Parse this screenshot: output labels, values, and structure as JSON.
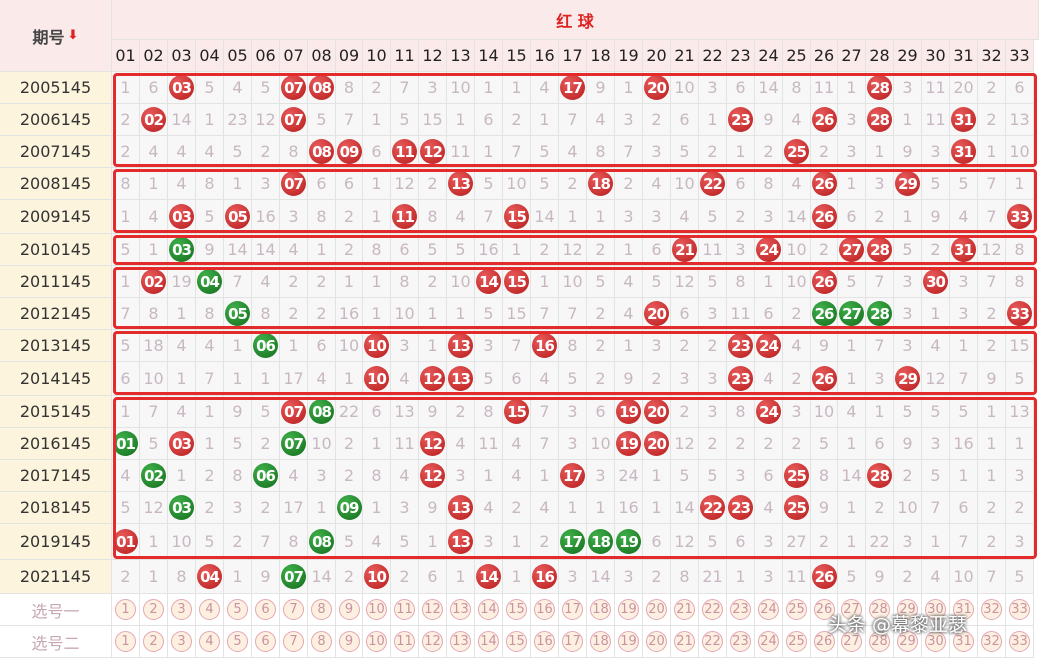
{
  "header": {
    "period_label": "期号",
    "sort_arrow": "⬇",
    "section_title": "红 球",
    "columns": [
      "01",
      "02",
      "03",
      "04",
      "05",
      "06",
      "07",
      "08",
      "09",
      "10",
      "11",
      "12",
      "13",
      "14",
      "15",
      "16",
      "17",
      "18",
      "19",
      "20",
      "21",
      "22",
      "23",
      "24",
      "25",
      "26",
      "27",
      "28",
      "29",
      "30",
      "31",
      "32",
      "33"
    ]
  },
  "rows": [
    {
      "period": "2005145",
      "cells": [
        "1",
        "6",
        "03",
        "5",
        "4",
        "5",
        "07",
        "08",
        "8",
        "2",
        "7",
        "3",
        "10",
        "1",
        "1",
        "4",
        "17",
        "9",
        "1",
        "20",
        "10",
        "3",
        "6",
        "14",
        "8",
        "11",
        "1",
        "28",
        "3",
        "11",
        "20",
        "2",
        "6"
      ]
    },
    {
      "period": "2006145",
      "cells": [
        "2",
        "02",
        "14",
        "1",
        "23",
        "12",
        "07",
        "5",
        "7",
        "1",
        "5",
        "15",
        "1",
        "6",
        "2",
        "1",
        "7",
        "4",
        "3",
        "2",
        "6",
        "1",
        "23",
        "9",
        "4",
        "26",
        "3",
        "28",
        "1",
        "11",
        "31",
        "2",
        "13"
      ]
    },
    {
      "period": "2007145",
      "cells": [
        "2",
        "4",
        "4",
        "4",
        "5",
        "2",
        "8",
        "08",
        "09",
        "6",
        "11",
        "12",
        "11",
        "1",
        "7",
        "5",
        "4",
        "8",
        "7",
        "3",
        "5",
        "2",
        "1",
        "2",
        "25",
        "2",
        "3",
        "1",
        "9",
        "3",
        "31",
        "1",
        "10"
      ]
    },
    {
      "period": "2008145",
      "cells": [
        "8",
        "1",
        "4",
        "8",
        "1",
        "3",
        "07",
        "6",
        "6",
        "1",
        "12",
        "2",
        "13",
        "5",
        "10",
        "5",
        "2",
        "18",
        "2",
        "4",
        "10",
        "22",
        "6",
        "8",
        "4",
        "26",
        "1",
        "3",
        "29",
        "5",
        "5",
        "7",
        "1"
      ]
    },
    {
      "period": "2009145",
      "cells": [
        "1",
        "4",
        "03",
        "5",
        "05",
        "16",
        "3",
        "8",
        "2",
        "1",
        "11",
        "8",
        "4",
        "7",
        "15",
        "14",
        "1",
        "1",
        "3",
        "3",
        "4",
        "5",
        "2",
        "3",
        "14",
        "26",
        "6",
        "2",
        "1",
        "9",
        "4",
        "7",
        "33"
      ]
    },
    {
      "period": "2010145",
      "cells": [
        "5",
        "1",
        "03",
        "9",
        "14",
        "14",
        "4",
        "1",
        "2",
        "8",
        "6",
        "5",
        "5",
        "16",
        "1",
        "2",
        "12",
        "2",
        "1",
        "6",
        "21",
        "11",
        "3",
        "24",
        "10",
        "2",
        "27",
        "28",
        "5",
        "2",
        "31",
        "12",
        "8"
      ]
    },
    {
      "period": "2011145",
      "cells": [
        "1",
        "02",
        "19",
        "04",
        "7",
        "4",
        "2",
        "2",
        "1",
        "1",
        "8",
        "2",
        "10",
        "14",
        "15",
        "1",
        "10",
        "5",
        "4",
        "5",
        "12",
        "5",
        "8",
        "1",
        "10",
        "26",
        "5",
        "7",
        "3",
        "30",
        "3",
        "7",
        "8"
      ]
    },
    {
      "period": "2012145",
      "cells": [
        "7",
        "8",
        "1",
        "8",
        "05",
        "8",
        "2",
        "2",
        "16",
        "1",
        "10",
        "1",
        "1",
        "5",
        "15",
        "7",
        "7",
        "2",
        "4",
        "20",
        "6",
        "3",
        "11",
        "6",
        "2",
        "26",
        "27",
        "28",
        "3",
        "1",
        "3",
        "2",
        "33"
      ]
    },
    {
      "period": "2013145",
      "cells": [
        "5",
        "18",
        "4",
        "4",
        "1",
        "06",
        "1",
        "6",
        "10",
        "10",
        "3",
        "1",
        "13",
        "3",
        "7",
        "16",
        "8",
        "2",
        "1",
        "3",
        "2",
        "2",
        "23",
        "24",
        "4",
        "9",
        "1",
        "7",
        "3",
        "4",
        "1",
        "2",
        "15"
      ]
    },
    {
      "period": "2014145",
      "cells": [
        "6",
        "10",
        "1",
        "7",
        "1",
        "1",
        "17",
        "4",
        "1",
        "10",
        "4",
        "12",
        "13",
        "5",
        "6",
        "4",
        "5",
        "2",
        "9",
        "2",
        "3",
        "3",
        "23",
        "4",
        "2",
        "26",
        "1",
        "3",
        "29",
        "12",
        "7",
        "9",
        "5"
      ]
    },
    {
      "period": "2015145",
      "cells": [
        "1",
        "7",
        "4",
        "1",
        "9",
        "5",
        "07",
        "08",
        "22",
        "6",
        "13",
        "9",
        "2",
        "8",
        "15",
        "7",
        "3",
        "6",
        "19",
        "20",
        "2",
        "3",
        "8",
        "24",
        "3",
        "10",
        "4",
        "1",
        "5",
        "5",
        "5",
        "1",
        "13"
      ]
    },
    {
      "period": "2016145",
      "cells": [
        "01",
        "5",
        "03",
        "1",
        "5",
        "2",
        "07",
        "10",
        "2",
        "1",
        "11",
        "12",
        "4",
        "11",
        "4",
        "7",
        "3",
        "10",
        "19",
        "20",
        "12",
        "2",
        "2",
        "2",
        "2",
        "5",
        "1",
        "6",
        "9",
        "3",
        "16",
        "1",
        "1"
      ]
    },
    {
      "period": "2017145",
      "cells": [
        "4",
        "02",
        "1",
        "2",
        "8",
        "06",
        "4",
        "3",
        "2",
        "8",
        "4",
        "12",
        "3",
        "1",
        "4",
        "1",
        "17",
        "3",
        "24",
        "1",
        "5",
        "5",
        "3",
        "6",
        "25",
        "8",
        "14",
        "28",
        "2",
        "5",
        "1",
        "1",
        "3"
      ]
    },
    {
      "period": "2018145",
      "cells": [
        "5",
        "12",
        "03",
        "2",
        "3",
        "2",
        "17",
        "1",
        "09",
        "1",
        "3",
        "9",
        "13",
        "4",
        "2",
        "4",
        "1",
        "1",
        "16",
        "1",
        "14",
        "22",
        "23",
        "4",
        "25",
        "9",
        "1",
        "2",
        "10",
        "7",
        "6",
        "2",
        "2"
      ]
    },
    {
      "period": "2019145",
      "cells": [
        "01",
        "1",
        "10",
        "5",
        "2",
        "7",
        "8",
        "08",
        "5",
        "4",
        "5",
        "1",
        "13",
        "3",
        "1",
        "2",
        "17",
        "18",
        "19",
        "6",
        "12",
        "5",
        "6",
        "3",
        "27",
        "2",
        "1",
        "22",
        "3",
        "1",
        "7",
        "2",
        "3"
      ]
    },
    {
      "period": "2021145",
      "cells": [
        "2",
        "1",
        "8",
        "04",
        "1",
        "9",
        "07",
        "14",
        "2",
        "10",
        "2",
        "6",
        "1",
        "14",
        "1",
        "16",
        "3",
        "14",
        "3",
        "2",
        "8",
        "21",
        "1",
        "3",
        "11",
        "26",
        "5",
        "9",
        "2",
        "4",
        "10",
        "7",
        "5"
      ]
    }
  ],
  "balls": {
    "red": [
      "0-3",
      "0-7",
      "0-8",
      "0-17",
      "0-20",
      "0-28",
      "1-2",
      "1-7",
      "1-23",
      "1-26",
      "1-28",
      "1-31",
      "2-8",
      "2-9",
      "2-11",
      "2-12",
      "2-25",
      "2-31",
      "3-7",
      "3-13",
      "3-18",
      "3-22",
      "3-26",
      "3-29",
      "4-3",
      "4-5",
      "4-11",
      "4-15",
      "4-26",
      "4-33",
      "5-21",
      "5-24",
      "5-27",
      "5-28",
      "5-31",
      "6-2",
      "6-14",
      "6-15",
      "6-26",
      "6-30",
      "7-20",
      "7-33",
      "8-10",
      "8-13",
      "8-16",
      "8-23",
      "8-24",
      "9-10",
      "9-12",
      "9-13",
      "9-23",
      "9-26",
      "9-29",
      "10-7",
      "10-15",
      "10-19",
      "10-20",
      "10-24",
      "11-3",
      "11-12",
      "11-19",
      "11-20",
      "12-12",
      "12-17",
      "12-25",
      "12-28",
      "13-13",
      "13-22",
      "13-23",
      "13-25",
      "14-1",
      "14-13",
      "15-4",
      "15-10",
      "15-14",
      "15-16",
      "15-26"
    ],
    "green": [
      "5-3",
      "6-4",
      "7-5",
      "7-26",
      "7-27",
      "7-28",
      "8-6",
      "10-8",
      "11-1",
      "11-7",
      "12-2",
      "12-6",
      "13-3",
      "13-9",
      "14-8",
      "14-17",
      "14-18",
      "14-19",
      "15-7"
    ]
  },
  "picks": [
    {
      "label": "选号一",
      "numbers": [
        "1",
        "2",
        "3",
        "4",
        "5",
        "6",
        "7",
        "8",
        "9",
        "10",
        "11",
        "12",
        "13",
        "14",
        "15",
        "16",
        "17",
        "18",
        "19",
        "20",
        "21",
        "22",
        "23",
        "24",
        "25",
        "26",
        "27",
        "28",
        "29",
        "30",
        "31",
        "32",
        "33"
      ]
    },
    {
      "label": "选号二",
      "numbers": [
        "1",
        "2",
        "3",
        "4",
        "5",
        "6",
        "7",
        "8",
        "9",
        "10",
        "11",
        "12",
        "13",
        "14",
        "15",
        "16",
        "17",
        "18",
        "19",
        "20",
        "21",
        "22",
        "23",
        "24",
        "25",
        "26",
        "27",
        "28",
        "29",
        "30",
        "31",
        "32",
        "33"
      ]
    }
  ],
  "watermark": "头条 @幕黎亚瑟",
  "colors": {
    "red_ball": "#c62828",
    "green_ball": "#1b7f26",
    "group_box": "#e32b2b",
    "header_bg": "#fbeaea",
    "period_bg": "#fcf4dc"
  }
}
